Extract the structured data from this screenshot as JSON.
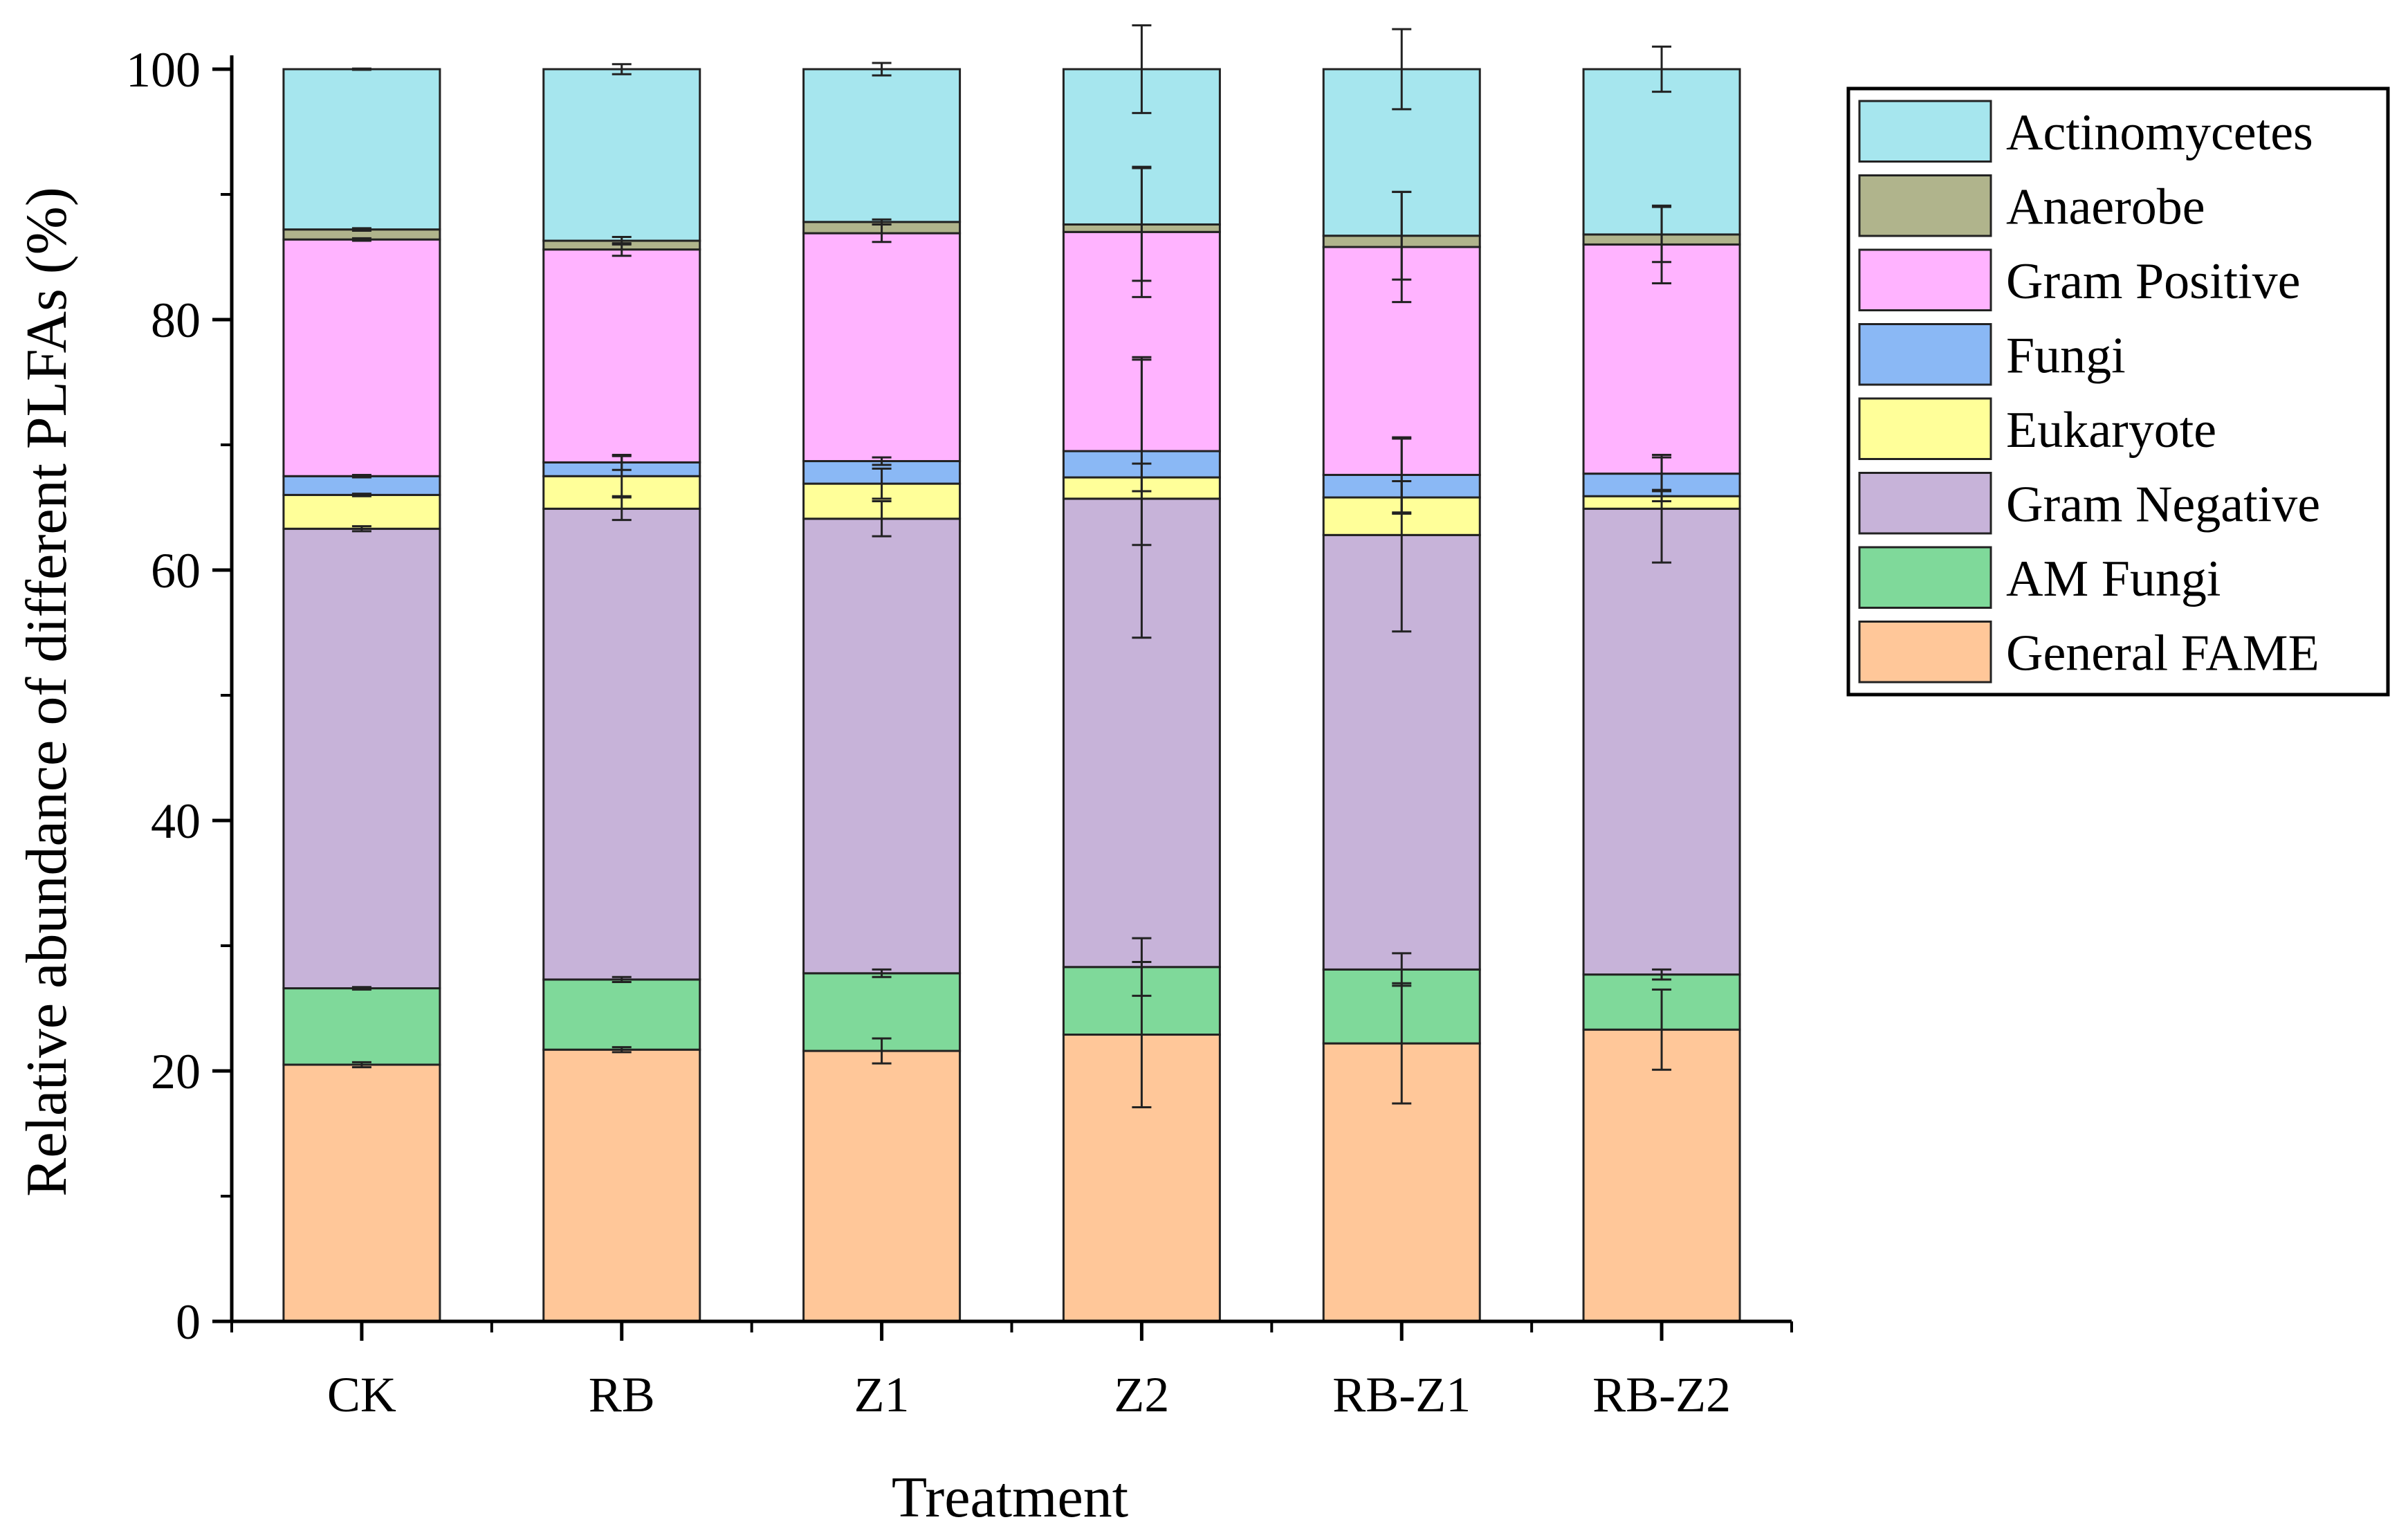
{
  "chart_data": {
    "type": "bar",
    "stacked": true,
    "title": "",
    "xlabel": "Treatment",
    "ylabel": "Relative abundance of different PLFAs (%)",
    "ylim": [
      0,
      100
    ],
    "yticks": [
      0,
      20,
      40,
      60,
      80,
      100
    ],
    "legend_position": "right",
    "categories": [
      "CK",
      "RB",
      "Z1",
      "Z2",
      "RB-Z1",
      "RB-Z2"
    ],
    "series": [
      {
        "name": "General FAME",
        "color": "#ffc799",
        "values": [
          20.5,
          21.7,
          21.6,
          22.9,
          22.2,
          23.3
        ],
        "errors": [
          0.2,
          0.2,
          1.0,
          5.8,
          4.8,
          3.2
        ]
      },
      {
        "name": "AM Fungi",
        "color": "#7fd99a",
        "values": [
          6.1,
          5.6,
          6.2,
          5.4,
          5.9,
          4.4
        ],
        "errors": [
          0.1,
          0.2,
          0.3,
          2.3,
          1.3,
          0.4
        ]
      },
      {
        "name": "Gram Negative",
        "color": "#c7b3d9",
        "values": [
          36.7,
          37.6,
          36.3,
          37.4,
          34.7,
          37.2
        ],
        "errors": [
          0.2,
          0.9,
          1.4,
          11.1,
          7.7,
          4.3
        ]
      },
      {
        "name": "Eukaryote",
        "color": "#ffff99",
        "values": [
          2.7,
          2.6,
          2.8,
          1.7,
          3.0,
          1.0
        ],
        "errors": [
          0.1,
          1.6,
          1.2,
          1.1,
          1.3,
          0.4
        ]
      },
      {
        "name": "Fungi",
        "color": "#8ab8f5",
        "values": [
          1.5,
          1.1,
          1.8,
          2.1,
          1.8,
          1.8
        ],
        "errors": [
          0.1,
          0.6,
          0.3,
          7.5,
          3.0,
          1.3
        ]
      },
      {
        "name": "Gram Positive",
        "color": "#ffb3ff",
        "values": [
          18.9,
          17.0,
          18.2,
          17.5,
          18.2,
          18.3
        ],
        "errors": [
          0.1,
          0.5,
          0.7,
          5.2,
          4.4,
          3.1
        ]
      },
      {
        "name": "Anaerobe",
        "color": "#b0b48c",
        "values": [
          0.8,
          0.7,
          0.9,
          0.6,
          0.9,
          0.8
        ],
        "errors": [
          0.1,
          0.3,
          0.2,
          4.5,
          3.5,
          2.2
        ]
      },
      {
        "name": "Actinomycetes",
        "color": "#a6e6ee",
        "values": [
          12.8,
          13.7,
          12.2,
          12.4,
          13.3,
          13.2
        ],
        "errors": [
          0.05,
          0.4,
          0.5,
          3.5,
          3.2,
          1.8
        ]
      }
    ]
  }
}
